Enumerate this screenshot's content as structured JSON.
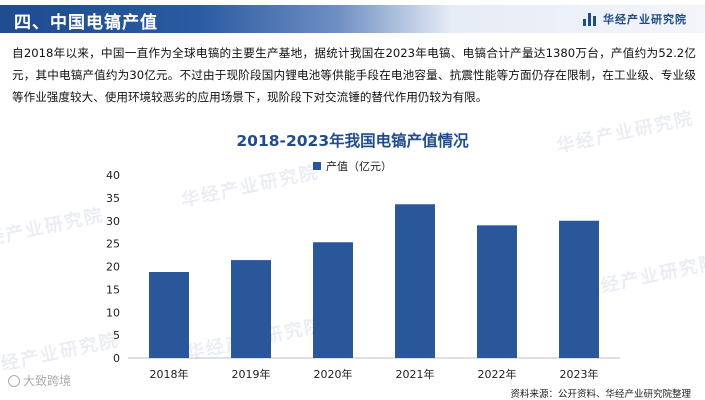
{
  "header": {
    "title": "四、中国电镐产值",
    "brand": "华经产业研究院",
    "brand_color": "#1f4b8f"
  },
  "intro_text": "自2018年以来，中国一直作为全球电镐的主要生产基地，据统计我国在2023年电镐、电镐合计产量达1380万台，产值约为52.2亿元，其中电镐产值约为30亿元。不过由于现阶段国内锂电池等供能手段在电池容量、抗震性能等方面仍存在限制，在工业级、专业级等作业强度较大、使用环境较恶劣的应用场景下，现阶段下对交流锤的替代作用仍较为有限。",
  "watermark": "华经产业研究院",
  "overlay_mark": "大致跨境",
  "source": "资料来源：公开资料、华经产业研究院整理",
  "chart_data": {
    "type": "bar",
    "title": "2018-2023年我国电镐产值情况",
    "categories": [
      "2018年",
      "2019年",
      "2020年",
      "2021年",
      "2022年",
      "2023年"
    ],
    "series": [
      {
        "name": "产值（亿元）",
        "values": [
          18.8,
          21.4,
          25.3,
          33.6,
          29.0,
          30.0
        ],
        "color": "#2a579a"
      }
    ],
    "ylim": [
      0,
      40
    ],
    "yticks": [
      0,
      5,
      10,
      15,
      20,
      25,
      30,
      35,
      40
    ],
    "grid": false,
    "legend_position": "top-center"
  }
}
